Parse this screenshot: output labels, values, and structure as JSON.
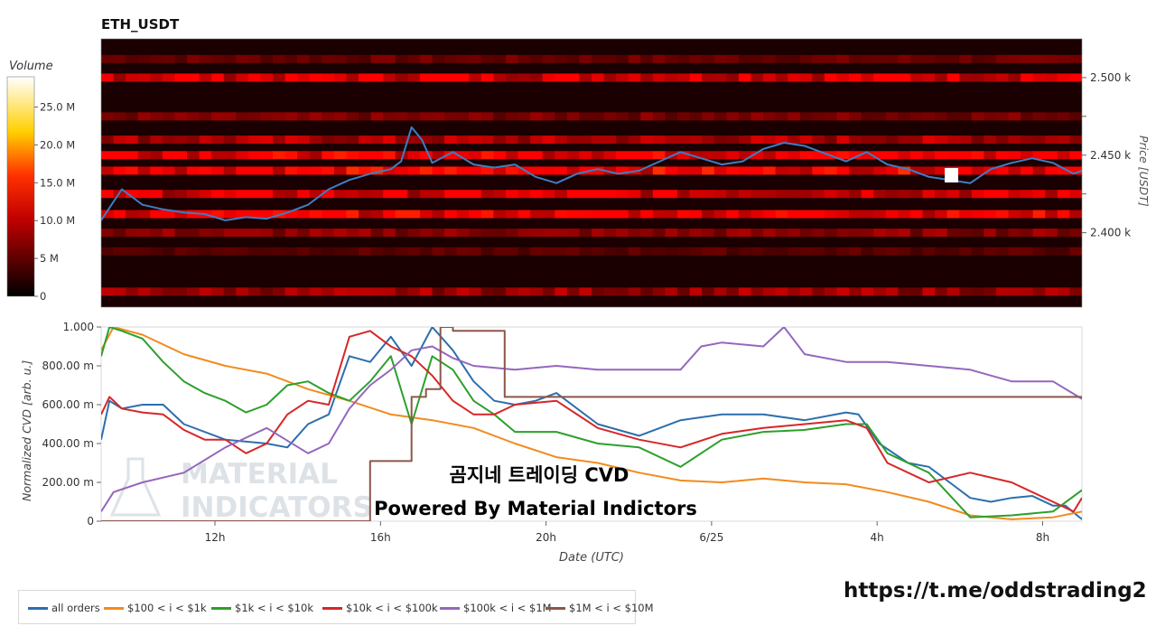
{
  "chart_data": [
    {
      "type": "heatmap",
      "title": "ETH_USDT",
      "xlabel": "",
      "ylabel": "Price [USDT]",
      "y_ticks": [
        "2.400 k",
        "2.450 k",
        "2.500 k"
      ],
      "y_tick_values": [
        2400,
        2425,
        2450,
        2475,
        2500
      ],
      "ylim": [
        2352,
        2525
      ],
      "colorbar": {
        "title": "Volume",
        "ticks": [
          "0",
          "5 M",
          "10.0 M",
          "15.0 M",
          "20.0 M",
          "25.0 M"
        ],
        "tick_values": [
          0,
          5,
          10,
          15,
          20,
          25
        ],
        "range": [
          0,
          29
        ],
        "colors": [
          "#000000",
          "#ff0000",
          "#ffff00",
          "#ffffff"
        ]
      },
      "grid": false,
      "price_series": {
        "name": "",
        "color": "#3b7fc4",
        "x": [
          0,
          0.5,
          1,
          1.5,
          2,
          2.5,
          3,
          3.5,
          4,
          4.5,
          5,
          5.5,
          6,
          6.5,
          7,
          7.25,
          7.5,
          7.75,
          8,
          8.5,
          9,
          9.5,
          10,
          10.5,
          11,
          11.5,
          12,
          12.5,
          13,
          13.5,
          14,
          14.5,
          15,
          15.5,
          16,
          16.5,
          17,
          17.5,
          18,
          18.5,
          19,
          19.5,
          20,
          20.5,
          21,
          21.5,
          22,
          22.5,
          23,
          23.5,
          23.7
        ],
        "y": [
          2408,
          2428,
          2418,
          2415,
          2413,
          2412,
          2408,
          2410,
          2409,
          2413,
          2418,
          2428,
          2434,
          2438,
          2441,
          2446,
          2468,
          2460,
          2445,
          2452,
          2444,
          2442,
          2444,
          2436,
          2432,
          2438,
          2441,
          2438,
          2440,
          2446,
          2452,
          2448,
          2444,
          2446,
          2454,
          2458,
          2456,
          2451,
          2446,
          2452,
          2444,
          2441,
          2436,
          2434,
          2432,
          2441,
          2445,
          2448,
          2445,
          2438,
          2440
        ]
      },
      "volume_bands": [
        {
          "price": 2512,
          "volume": 4
        },
        {
          "price": 2500,
          "volume": 12
        },
        {
          "price": 2475,
          "volume": 5
        },
        {
          "price": 2460,
          "volume": 8
        },
        {
          "price": 2450,
          "volume": 14
        },
        {
          "price": 2440,
          "volume": 15
        },
        {
          "price": 2425,
          "volume": 11
        },
        {
          "price": 2412,
          "volume": 14
        },
        {
          "price": 2400,
          "volume": 6
        },
        {
          "price": 2388,
          "volume": 3
        },
        {
          "price": 2362,
          "volume": 7
        }
      ]
    },
    {
      "type": "line",
      "title": "",
      "xlabel": "Date (UTC)",
      "ylabel": "Normalized CVD [arb. u.]",
      "x_ticks": [
        "12h",
        "16h",
        "20h",
        "6/25",
        "4h",
        "8h"
      ],
      "x_tick_values": [
        2.75,
        6.75,
        10.75,
        14.75,
        18.75,
        22.75
      ],
      "xlim": [
        0,
        23.7
      ],
      "y_ticks": [
        "0",
        "200.00 m",
        "400.00 m",
        "600.00 m",
        "800.00 m",
        "1.000"
      ],
      "y_tick_values": [
        0,
        0.2,
        0.4,
        0.6,
        0.8,
        1.0
      ],
      "ylim": [
        0,
        1.0
      ],
      "grid": false,
      "legend_position": "bottom",
      "series": [
        {
          "name": "all orders",
          "color": "#2b6fad",
          "x": [
            0,
            0.2,
            0.5,
            1,
            1.5,
            2,
            3,
            4,
            4.5,
            5,
            5.5,
            6,
            6.5,
            7,
            7.5,
            8,
            8.5,
            9,
            9.5,
            10,
            10.5,
            11,
            12,
            13,
            14,
            15,
            16,
            17,
            18,
            18.3,
            18.8,
            19.5,
            20,
            20.5,
            21,
            21.5,
            22,
            22.5,
            23,
            23.3,
            23.7
          ],
          "y": [
            0.42,
            0.62,
            0.58,
            0.6,
            0.6,
            0.5,
            0.42,
            0.4,
            0.38,
            0.5,
            0.55,
            0.85,
            0.82,
            0.95,
            0.8,
            1.0,
            0.88,
            0.72,
            0.62,
            0.6,
            0.62,
            0.66,
            0.5,
            0.44,
            0.52,
            0.55,
            0.55,
            0.52,
            0.56,
            0.55,
            0.4,
            0.3,
            0.28,
            0.2,
            0.12,
            0.1,
            0.12,
            0.13,
            0.08,
            0.08,
            0.01
          ]
        },
        {
          "name": "$100 < i < $1k",
          "color": "#f28b1e",
          "x": [
            0,
            0.3,
            1,
            2,
            3,
            4,
            5,
            6,
            7,
            8,
            9,
            10,
            11,
            12,
            13,
            14,
            15,
            16,
            17,
            18,
            19,
            20,
            21,
            22,
            23,
            23.7
          ],
          "y": [
            0.88,
            1.0,
            0.96,
            0.86,
            0.8,
            0.76,
            0.68,
            0.62,
            0.55,
            0.52,
            0.48,
            0.4,
            0.33,
            0.3,
            0.25,
            0.21,
            0.2,
            0.22,
            0.2,
            0.19,
            0.15,
            0.1,
            0.03,
            0.01,
            0.02,
            0.05
          ]
        },
        {
          "name": "$1k < i < $10k",
          "color": "#2ca02c",
          "x": [
            0,
            0.2,
            0.5,
            1,
            1.5,
            2,
            2.5,
            3,
            3.5,
            4,
            4.5,
            5,
            5.5,
            6,
            6.5,
            7,
            7.5,
            8,
            8.5,
            9,
            9.5,
            10,
            11,
            12,
            13,
            14,
            15,
            16,
            17,
            18,
            18.5,
            19,
            20,
            21,
            22,
            23,
            23.7
          ],
          "y": [
            0.85,
            1.0,
            0.98,
            0.94,
            0.82,
            0.72,
            0.66,
            0.62,
            0.56,
            0.6,
            0.7,
            0.72,
            0.66,
            0.62,
            0.72,
            0.85,
            0.5,
            0.85,
            0.78,
            0.62,
            0.55,
            0.46,
            0.46,
            0.4,
            0.38,
            0.28,
            0.42,
            0.46,
            0.47,
            0.5,
            0.5,
            0.35,
            0.25,
            0.02,
            0.03,
            0.05,
            0.16
          ]
        },
        {
          "name": "$10k < i < $100k",
          "color": "#d62728",
          "x": [
            0,
            0.2,
            0.5,
            1,
            1.5,
            2,
            2.5,
            3,
            3.5,
            4,
            4.5,
            5,
            5.5,
            6,
            6.5,
            7,
            7.5,
            8,
            8.5,
            9,
            9.5,
            10,
            11,
            12,
            13,
            14,
            15,
            16,
            17,
            18,
            18.5,
            19,
            20,
            21,
            22,
            23,
            23.5,
            23.7
          ],
          "y": [
            0.55,
            0.64,
            0.58,
            0.56,
            0.55,
            0.47,
            0.42,
            0.42,
            0.35,
            0.4,
            0.55,
            0.62,
            0.6,
            0.95,
            0.98,
            0.9,
            0.85,
            0.75,
            0.62,
            0.55,
            0.55,
            0.6,
            0.62,
            0.48,
            0.42,
            0.38,
            0.45,
            0.48,
            0.5,
            0.52,
            0.48,
            0.3,
            0.2,
            0.25,
            0.2,
            0.1,
            0.05,
            0.12
          ]
        },
        {
          "name": "$100k < i < $1M",
          "color": "#9467bd",
          "x": [
            0,
            0.3,
            1,
            2,
            3,
            4,
            5,
            5.5,
            6,
            6.5,
            7,
            7.5,
            8,
            8.5,
            9,
            10,
            11,
            12,
            13,
            14,
            14.5,
            15,
            16,
            16.5,
            17,
            18,
            19,
            20,
            21,
            22,
            23,
            23.7
          ],
          "y": [
            0.05,
            0.15,
            0.2,
            0.25,
            0.38,
            0.48,
            0.35,
            0.4,
            0.58,
            0.7,
            0.78,
            0.88,
            0.9,
            0.84,
            0.8,
            0.78,
            0.8,
            0.78,
            0.78,
            0.78,
            0.9,
            0.92,
            0.9,
            1.0,
            0.86,
            0.82,
            0.82,
            0.8,
            0.78,
            0.72,
            0.72,
            0.63
          ]
        },
        {
          "name": "$1M < i < $10M",
          "color": "#8c564b",
          "x": [
            0,
            6.5,
            6.5,
            7.5,
            7.5,
            7.85,
            7.85,
            8.2,
            8.2,
            8.5,
            8.5,
            9.75,
            9.75,
            23.7
          ],
          "y": [
            0,
            0,
            0.31,
            0.31,
            0.64,
            0.64,
            0.68,
            0.68,
            1.0,
            1.0,
            0.98,
            0.98,
            0.64,
            0.64
          ]
        }
      ],
      "annotations": [
        "곰지네 트레이딩 CVD",
        "Powered By Material Indictors"
      ],
      "watermark": "MATERIAL INDICATORS"
    }
  ],
  "footer": {
    "link_text": "https://t.me/oddstrading2"
  }
}
